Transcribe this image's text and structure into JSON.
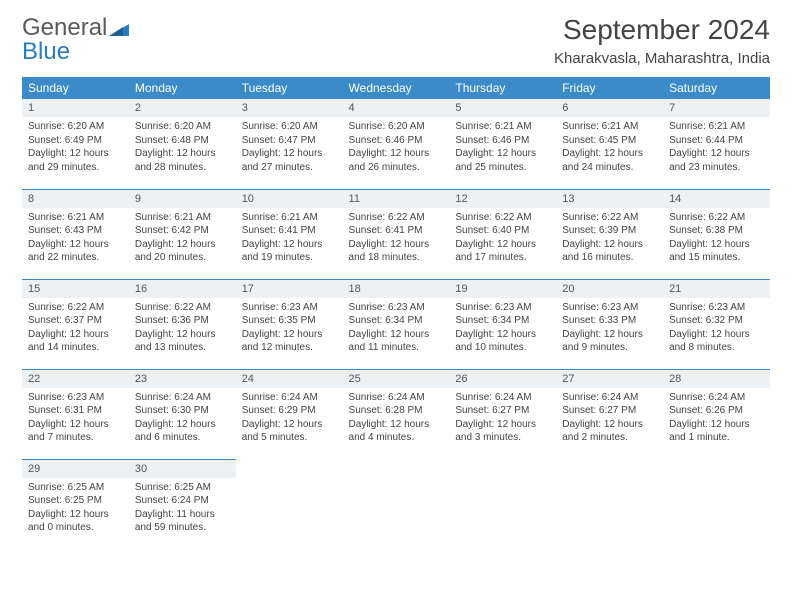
{
  "logo": {
    "part1": "General",
    "part2": "Blue"
  },
  "title": "September 2024",
  "location": "Kharakvasla, Maharashtra, India",
  "colors": {
    "header_bg": "#3b8bc8",
    "header_text": "#ffffff",
    "daynum_bg": "#eef1f3",
    "border": "#3b8bc8",
    "logo_gray": "#5a5a5a",
    "logo_blue": "#2b7bbf"
  },
  "weekdays": [
    "Sunday",
    "Monday",
    "Tuesday",
    "Wednesday",
    "Thursday",
    "Friday",
    "Saturday"
  ],
  "weeks": [
    [
      {
        "day": "1",
        "sunrise": "Sunrise: 6:20 AM",
        "sunset": "Sunset: 6:49 PM",
        "daylight": "Daylight: 12 hours and 29 minutes."
      },
      {
        "day": "2",
        "sunrise": "Sunrise: 6:20 AM",
        "sunset": "Sunset: 6:48 PM",
        "daylight": "Daylight: 12 hours and 28 minutes."
      },
      {
        "day": "3",
        "sunrise": "Sunrise: 6:20 AM",
        "sunset": "Sunset: 6:47 PM",
        "daylight": "Daylight: 12 hours and 27 minutes."
      },
      {
        "day": "4",
        "sunrise": "Sunrise: 6:20 AM",
        "sunset": "Sunset: 6:46 PM",
        "daylight": "Daylight: 12 hours and 26 minutes."
      },
      {
        "day": "5",
        "sunrise": "Sunrise: 6:21 AM",
        "sunset": "Sunset: 6:46 PM",
        "daylight": "Daylight: 12 hours and 25 minutes."
      },
      {
        "day": "6",
        "sunrise": "Sunrise: 6:21 AM",
        "sunset": "Sunset: 6:45 PM",
        "daylight": "Daylight: 12 hours and 24 minutes."
      },
      {
        "day": "7",
        "sunrise": "Sunrise: 6:21 AM",
        "sunset": "Sunset: 6:44 PM",
        "daylight": "Daylight: 12 hours and 23 minutes."
      }
    ],
    [
      {
        "day": "8",
        "sunrise": "Sunrise: 6:21 AM",
        "sunset": "Sunset: 6:43 PM",
        "daylight": "Daylight: 12 hours and 22 minutes."
      },
      {
        "day": "9",
        "sunrise": "Sunrise: 6:21 AM",
        "sunset": "Sunset: 6:42 PM",
        "daylight": "Daylight: 12 hours and 20 minutes."
      },
      {
        "day": "10",
        "sunrise": "Sunrise: 6:21 AM",
        "sunset": "Sunset: 6:41 PM",
        "daylight": "Daylight: 12 hours and 19 minutes."
      },
      {
        "day": "11",
        "sunrise": "Sunrise: 6:22 AM",
        "sunset": "Sunset: 6:41 PM",
        "daylight": "Daylight: 12 hours and 18 minutes."
      },
      {
        "day": "12",
        "sunrise": "Sunrise: 6:22 AM",
        "sunset": "Sunset: 6:40 PM",
        "daylight": "Daylight: 12 hours and 17 minutes."
      },
      {
        "day": "13",
        "sunrise": "Sunrise: 6:22 AM",
        "sunset": "Sunset: 6:39 PM",
        "daylight": "Daylight: 12 hours and 16 minutes."
      },
      {
        "day": "14",
        "sunrise": "Sunrise: 6:22 AM",
        "sunset": "Sunset: 6:38 PM",
        "daylight": "Daylight: 12 hours and 15 minutes."
      }
    ],
    [
      {
        "day": "15",
        "sunrise": "Sunrise: 6:22 AM",
        "sunset": "Sunset: 6:37 PM",
        "daylight": "Daylight: 12 hours and 14 minutes."
      },
      {
        "day": "16",
        "sunrise": "Sunrise: 6:22 AM",
        "sunset": "Sunset: 6:36 PM",
        "daylight": "Daylight: 12 hours and 13 minutes."
      },
      {
        "day": "17",
        "sunrise": "Sunrise: 6:23 AM",
        "sunset": "Sunset: 6:35 PM",
        "daylight": "Daylight: 12 hours and 12 minutes."
      },
      {
        "day": "18",
        "sunrise": "Sunrise: 6:23 AM",
        "sunset": "Sunset: 6:34 PM",
        "daylight": "Daylight: 12 hours and 11 minutes."
      },
      {
        "day": "19",
        "sunrise": "Sunrise: 6:23 AM",
        "sunset": "Sunset: 6:34 PM",
        "daylight": "Daylight: 12 hours and 10 minutes."
      },
      {
        "day": "20",
        "sunrise": "Sunrise: 6:23 AM",
        "sunset": "Sunset: 6:33 PM",
        "daylight": "Daylight: 12 hours and 9 minutes."
      },
      {
        "day": "21",
        "sunrise": "Sunrise: 6:23 AM",
        "sunset": "Sunset: 6:32 PM",
        "daylight": "Daylight: 12 hours and 8 minutes."
      }
    ],
    [
      {
        "day": "22",
        "sunrise": "Sunrise: 6:23 AM",
        "sunset": "Sunset: 6:31 PM",
        "daylight": "Daylight: 12 hours and 7 minutes."
      },
      {
        "day": "23",
        "sunrise": "Sunrise: 6:24 AM",
        "sunset": "Sunset: 6:30 PM",
        "daylight": "Daylight: 12 hours and 6 minutes."
      },
      {
        "day": "24",
        "sunrise": "Sunrise: 6:24 AM",
        "sunset": "Sunset: 6:29 PM",
        "daylight": "Daylight: 12 hours and 5 minutes."
      },
      {
        "day": "25",
        "sunrise": "Sunrise: 6:24 AM",
        "sunset": "Sunset: 6:28 PM",
        "daylight": "Daylight: 12 hours and 4 minutes."
      },
      {
        "day": "26",
        "sunrise": "Sunrise: 6:24 AM",
        "sunset": "Sunset: 6:27 PM",
        "daylight": "Daylight: 12 hours and 3 minutes."
      },
      {
        "day": "27",
        "sunrise": "Sunrise: 6:24 AM",
        "sunset": "Sunset: 6:27 PM",
        "daylight": "Daylight: 12 hours and 2 minutes."
      },
      {
        "day": "28",
        "sunrise": "Sunrise: 6:24 AM",
        "sunset": "Sunset: 6:26 PM",
        "daylight": "Daylight: 12 hours and 1 minute."
      }
    ],
    [
      {
        "day": "29",
        "sunrise": "Sunrise: 6:25 AM",
        "sunset": "Sunset: 6:25 PM",
        "daylight": "Daylight: 12 hours and 0 minutes."
      },
      {
        "day": "30",
        "sunrise": "Sunrise: 6:25 AM",
        "sunset": "Sunset: 6:24 PM",
        "daylight": "Daylight: 11 hours and 59 minutes."
      },
      null,
      null,
      null,
      null,
      null
    ]
  ]
}
